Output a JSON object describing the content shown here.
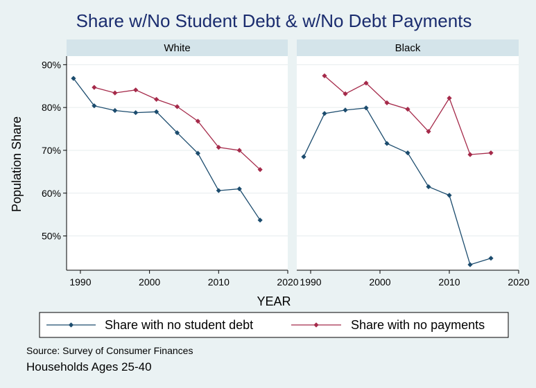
{
  "chart_data": {
    "type": "line",
    "title": "Share w/No Student Debt & w/No Debt Payments",
    "xlabel": "YEAR",
    "ylabel": "Population Share",
    "xlim": [
      1988,
      2020
    ],
    "ylim": [
      42,
      92
    ],
    "x_ticks": [
      1990,
      2000,
      2010,
      2020
    ],
    "y_ticks": [
      50,
      60,
      70,
      80,
      90
    ],
    "y_tick_labels": [
      "50%",
      "60%",
      "70%",
      "80%",
      "90%"
    ],
    "grid": true,
    "legend_position": "bottom",
    "colors": {
      "background": "#eaf2f3",
      "plot_bg": "#ffffff",
      "panel_header": "#d4e4ea",
      "title": "#1a2c6e",
      "no_student_debt": "#1c4c6e",
      "no_payments": "#a52a4a"
    },
    "panels": [
      {
        "label": "White",
        "series": [
          {
            "name": "Share with no student debt",
            "x": [
              1989,
              1992,
              1995,
              1998,
              2001,
              2004,
              2007,
              2010,
              2013,
              2016
            ],
            "y": [
              86.8,
              80.4,
              79.3,
              78.8,
              79.0,
              74.1,
              69.3,
              60.6,
              61.0,
              53.7
            ]
          },
          {
            "name": "Share with no payments",
            "x": [
              1992,
              1995,
              1998,
              2001,
              2004,
              2007,
              2010,
              2013,
              2016
            ],
            "y": [
              84.7,
              83.4,
              84.1,
              81.9,
              80.2,
              76.8,
              70.7,
              70.0,
              65.5
            ]
          }
        ]
      },
      {
        "label": "Black",
        "series": [
          {
            "name": "Share with no student debt",
            "x": [
              1989,
              1992,
              1995,
              1998,
              2001,
              2004,
              2007,
              2010,
              2013,
              2016
            ],
            "y": [
              68.5,
              78.6,
              79.4,
              79.9,
              71.6,
              69.4,
              61.5,
              59.5,
              43.3,
              44.8
            ]
          },
          {
            "name": "Share with no payments",
            "x": [
              1992,
              1995,
              1998,
              2001,
              2004,
              2007,
              2010,
              2013,
              2016
            ],
            "y": [
              87.4,
              83.2,
              85.7,
              81.1,
              79.6,
              74.4,
              82.2,
              69.0,
              69.4
            ]
          }
        ]
      }
    ],
    "legend": [
      "Share with no student debt",
      "Share with no payments"
    ],
    "notes": [
      "Source: Survey of Consumer Finances",
      "Households Ages 25-40"
    ]
  }
}
